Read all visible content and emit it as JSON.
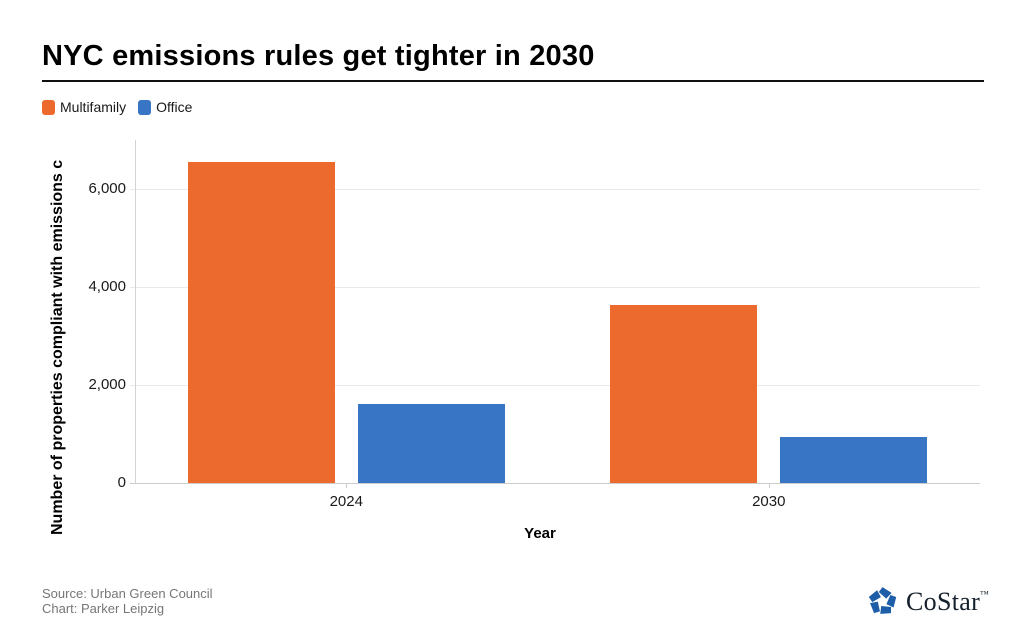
{
  "chart_data": {
    "type": "bar",
    "title": "NYC emissions rules get tighter in 2030",
    "categories": [
      "2024",
      "2030"
    ],
    "series": [
      {
        "name": "Multifamily",
        "color": "#ED6A2F",
        "values": [
          6550,
          3630
        ]
      },
      {
        "name": "Office",
        "color": "#3875C5",
        "values": [
          1620,
          930
        ]
      }
    ],
    "xlabel": "Year",
    "ylabel": "Number of properties compliant with emissions c",
    "ylim": [
      0,
      7000
    ],
    "yticks": [
      0,
      2000,
      4000,
      6000
    ],
    "ytick_labels": [
      "0",
      "2,000",
      "4,000",
      "6,000"
    ],
    "grid": true,
    "legend_position": "top-left"
  },
  "footer": {
    "source": "Source: Urban Green Council",
    "credit": "Chart: Parker Leipzig",
    "logo_text": "CoStar",
    "logo_tm": "™",
    "logo_icon_color": "#1E5EA9"
  }
}
